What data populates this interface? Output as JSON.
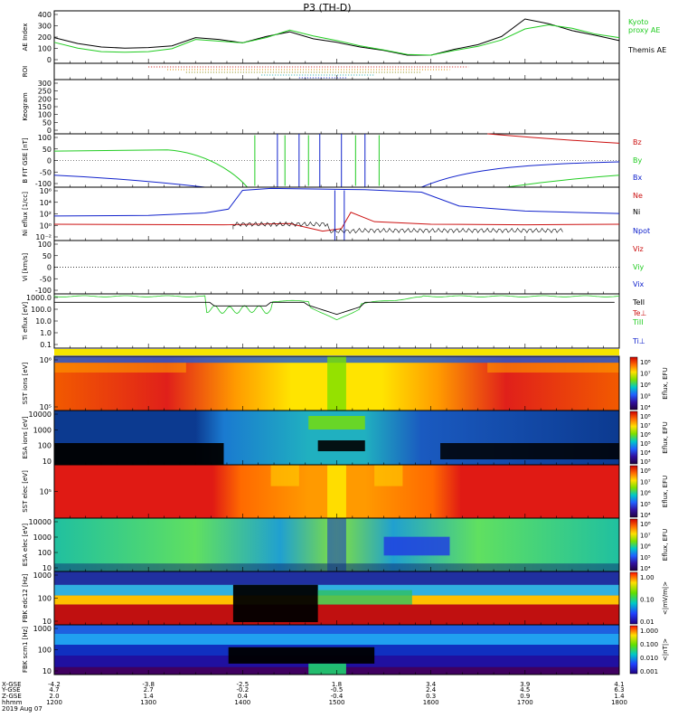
{
  "title": "P3 (TH-D)",
  "date": "2019 Aug 07",
  "colors": {
    "black": "#000000",
    "green": "#22cc22",
    "red": "#cc1111",
    "blue": "#1122cc",
    "frame": "#000000"
  },
  "chart_data": [
    {
      "type": "line",
      "id": "ae",
      "ylabel": "AE Index",
      "ylim": [
        -30,
        420
      ],
      "yticks": [
        "400",
        "300",
        "200",
        "100",
        "0"
      ],
      "legend": [
        "Kyoto proxy AE",
        "Themis AE"
      ],
      "x_hours": [
        12.0,
        12.25,
        12.5,
        12.75,
        13.0,
        13.25,
        13.5,
        13.75,
        14.0,
        14.25,
        14.5,
        14.75,
        15.0,
        15.25,
        15.5,
        15.75,
        16.0,
        16.25,
        16.5,
        16.75,
        17.0,
        17.25,
        17.5,
        17.75,
        18.0
      ],
      "series": [
        {
          "name": "Themis AE",
          "color": "black",
          "values": [
            190,
            140,
            110,
            100,
            105,
            120,
            190,
            175,
            145,
            200,
            240,
            180,
            150,
            110,
            80,
            40,
            40,
            90,
            130,
            200,
            350,
            310,
            250,
            210,
            165
          ]
        },
        {
          "name": "Kyoto proxy AE",
          "color": "green",
          "values": [
            150,
            100,
            70,
            65,
            70,
            95,
            175,
            160,
            145,
            190,
            255,
            205,
            165,
            120,
            85,
            45,
            40,
            80,
            115,
            170,
            265,
            300,
            270,
            220,
            190
          ]
        }
      ]
    },
    {
      "type": "scatter",
      "id": "roi",
      "ylabel": "ROI",
      "note": "dotted region-of-interest bars"
    },
    {
      "type": "line",
      "id": "keogram",
      "ylabel": "Keogram",
      "yticks": [
        "300",
        "250",
        "200",
        "150",
        "100",
        "50",
        "0"
      ]
    },
    {
      "type": "line",
      "id": "bfit",
      "ylabel": "B FIT GSE [nT]",
      "ylim": [
        -100,
        100
      ],
      "yticks": [
        "100",
        "50",
        "0",
        "-50",
        "-100"
      ],
      "legend": [
        "Bz",
        "By",
        "Bx"
      ]
    },
    {
      "type": "line",
      "id": "ni",
      "ylabel": "Ni eflux [1/cc]",
      "yticks": [
        "10⁶",
        "10⁴",
        "10²",
        "10⁰",
        "10⁻²"
      ],
      "legend": [
        "Ne",
        "Ni",
        "Npot"
      ]
    },
    {
      "type": "line",
      "id": "vi",
      "ylabel": "Vi [km/s]",
      "ylim": [
        -150,
        150
      ],
      "yticks": [
        "100",
        "50",
        "0",
        "-50",
        "-100"
      ],
      "legend": [
        "Viz",
        "Viy",
        "Vix"
      ]
    },
    {
      "type": "line",
      "id": "ti",
      "ylabel": "Ti eflux [eV]",
      "yticks": [
        "1000.0",
        "100.0",
        "10.0",
        "1.0",
        "0.1"
      ],
      "legend": [
        "TeII",
        "Te⊥",
        "TiII",
        "Ti⊥"
      ]
    },
    {
      "type": "heatmap",
      "id": "sst_i",
      "ylabel": "SST ions [eV]",
      "yticks": [
        "10⁶",
        "10⁵"
      ],
      "cbar_label": "Eflux, EFU",
      "cbar_ticks": [
        "10⁸",
        "10⁷",
        "10⁶",
        "10⁵",
        "10⁴"
      ]
    },
    {
      "type": "heatmap",
      "id": "esa_i",
      "ylabel": "ESA ions [eV]",
      "yticks": [
        "10000",
        "1000",
        "100",
        "10"
      ],
      "cbar_label": "Eflux, EFU",
      "cbar_ticks": [
        "10⁸",
        "10⁷",
        "10⁶",
        "10⁵",
        "10⁴",
        "10³"
      ]
    },
    {
      "type": "heatmap",
      "id": "sst_e",
      "ylabel": "SST elec [eV]",
      "yticks": [
        "10⁵"
      ],
      "cbar_label": "Eflux, EFU",
      "cbar_ticks": [
        "10⁸",
        "10⁷",
        "10⁶",
        "10⁵",
        "10⁴"
      ]
    },
    {
      "type": "heatmap",
      "id": "esa_e",
      "ylabel": "ESA elec [eV]",
      "yticks": [
        "10000",
        "1000",
        "100",
        "10"
      ],
      "cbar_label": "Eflux, EFU",
      "cbar_ticks": [
        "10⁸",
        "10⁷",
        "10⁶",
        "10⁵",
        "10⁴"
      ]
    },
    {
      "type": "heatmap",
      "id": "fbk_e",
      "ylabel": "FBK edc12 [Hz]",
      "yticks": [
        "1000",
        "100",
        "10"
      ],
      "cbar_label": "<|mV/m|>",
      "cbar_ticks": [
        "1.00",
        "0.10",
        "0.01"
      ]
    },
    {
      "type": "heatmap",
      "id": "fbk_b",
      "ylabel": "FBK scm1 [Hz]",
      "yticks": [
        "1000",
        "100",
        "10"
      ],
      "cbar_label": "<|nT|>",
      "cbar_ticks": [
        "1.000",
        "0.100",
        "0.010",
        "0.001"
      ]
    }
  ],
  "time_axis": {
    "row_labels": [
      "X-GSE",
      "Y-GSE",
      "Z-GSE",
      "hhmm",
      "2019 Aug 07"
    ],
    "columns": [
      {
        "x": [
          "-4.2",
          "4.7",
          "2.0"
        ],
        "t": "1200"
      },
      {
        "x": [
          "-3.8",
          "2.7",
          "1.4"
        ],
        "t": "1300"
      },
      {
        "x": [
          "-2.5",
          "-0.2",
          "0.4"
        ],
        "t": "1400"
      },
      {
        "x": [
          "1.8",
          "-0.5",
          "-0.4"
        ],
        "t": "1500"
      },
      {
        "x": [
          "3.4",
          "2.4",
          "0.3"
        ],
        "t": "1600"
      },
      {
        "x": [
          "3.9",
          "4.5",
          "0.9"
        ],
        "t": "1700"
      },
      {
        "x": [
          "4.1",
          "6.3",
          "1.4"
        ],
        "t": "1800"
      }
    ]
  }
}
